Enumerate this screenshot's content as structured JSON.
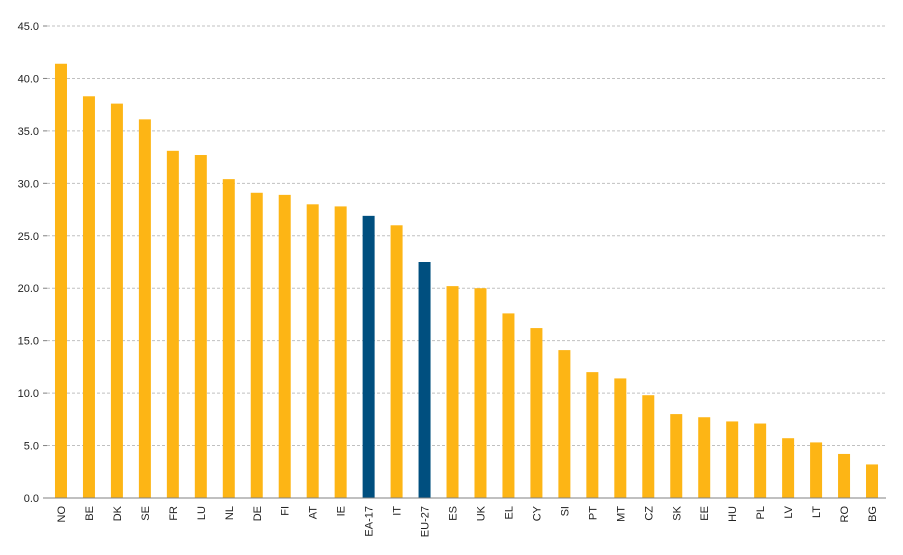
{
  "chart_data": {
    "type": "bar",
    "title": "",
    "xlabel": "",
    "ylabel": "",
    "ylim": [
      0,
      45
    ],
    "yticks": [
      "0.0",
      "5.0",
      "10.0",
      "15.0",
      "20.0",
      "25.0",
      "30.0",
      "35.0",
      "40.0",
      "45.0"
    ],
    "grid": true,
    "categories": [
      "NO",
      "BE",
      "DK",
      "SE",
      "FR",
      "LU",
      "NL",
      "DE",
      "FI",
      "AT",
      "IE",
      "EA-17",
      "IT",
      "EU-27",
      "ES",
      "UK",
      "EL",
      "CY",
      "SI",
      "PT",
      "MT",
      "CZ",
      "SK",
      "EE",
      "HU",
      "PL",
      "LV",
      "LT",
      "RO",
      "BG"
    ],
    "values": [
      41.4,
      38.3,
      37.6,
      36.1,
      33.1,
      32.7,
      30.4,
      29.1,
      28.9,
      28.0,
      27.8,
      26.9,
      26.0,
      22.5,
      20.2,
      20.0,
      17.6,
      16.2,
      14.1,
      12.0,
      11.4,
      9.8,
      8.0,
      7.7,
      7.3,
      7.1,
      5.7,
      5.3,
      4.2,
      3.2
    ],
    "highlight": [
      "EA-17",
      "EU-27"
    ],
    "colors": {
      "bar": "#FDB515",
      "highlight": "#004F7F",
      "grid": "#C0C0C0",
      "axis": "#808080"
    }
  }
}
